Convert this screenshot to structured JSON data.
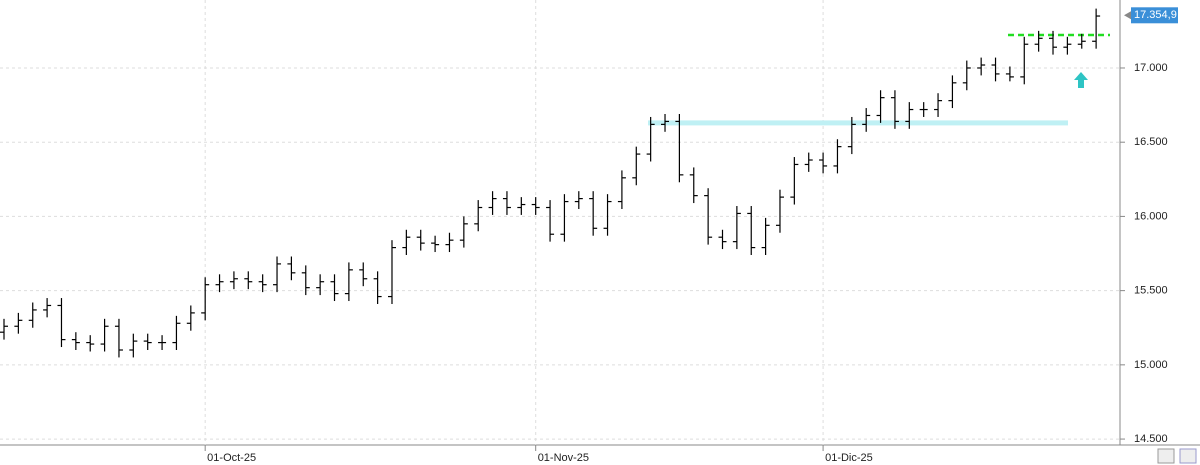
{
  "chart_data": {
    "type": "ohlc",
    "color": "#000000",
    "grid": true,
    "categories": [
      null,
      null,
      null,
      null,
      null,
      null,
      null,
      null,
      null,
      null,
      null,
      null,
      null,
      null,
      "01-Oct-25",
      null,
      null,
      null,
      null,
      null,
      null,
      null,
      null,
      null,
      null,
      null,
      null,
      null,
      null,
      null,
      null,
      null,
      null,
      null,
      null,
      null,
      null,
      "01-Nov-25",
      null,
      null,
      null,
      null,
      null,
      null,
      null,
      null,
      null,
      null,
      null,
      null,
      null,
      null,
      null,
      null,
      null,
      null,
      null,
      "01-Dic-25",
      null,
      null,
      null,
      null,
      null,
      null,
      null,
      null,
      null,
      null,
      null,
      null,
      null,
      null,
      null,
      null,
      null,
      null,
      null
    ],
    "open": [
      15220,
      15260,
      15300,
      15370,
      15400,
      15170,
      15150,
      15140,
      15260,
      15100,
      15160,
      15150,
      15150,
      15280,
      15350,
      15540,
      15560,
      15580,
      15560,
      15540,
      15680,
      15620,
      15520,
      15560,
      15480,
      15640,
      15580,
      15460,
      15790,
      15860,
      15820,
      15810,
      15840,
      15950,
      16060,
      16120,
      16060,
      16080,
      16060,
      15880,
      16100,
      16120,
      15920,
      16100,
      16260,
      16420,
      16620,
      16640,
      16280,
      16140,
      15860,
      15830,
      16020,
      15790,
      15940,
      16130,
      16350,
      16380,
      16340,
      16470,
      16620,
      16680,
      16800,
      16640,
      16720,
      16720,
      16780,
      16900,
      17000,
      17020,
      16960,
      16940,
      17160,
      17200,
      17140,
      17160,
      17180
    ],
    "high": [
      15310,
      15350,
      15420,
      15450,
      15450,
      15220,
      15200,
      15310,
      15310,
      15210,
      15210,
      15200,
      15330,
      15400,
      15590,
      15610,
      15630,
      15630,
      15610,
      15730,
      15730,
      15670,
      15610,
      15610,
      15690,
      15690,
      15630,
      15840,
      15910,
      15910,
      15870,
      15890,
      16000,
      16110,
      16170,
      16170,
      16130,
      16130,
      16110,
      16150,
      16170,
      16170,
      16150,
      16310,
      16470,
      16670,
      16690,
      16690,
      16330,
      16190,
      15910,
      16070,
      16070,
      15990,
      16180,
      16400,
      16430,
      16430,
      16520,
      16670,
      16730,
      16850,
      16850,
      16770,
      16770,
      16830,
      16950,
      17050,
      17070,
      17070,
      17010,
      17210,
      17250,
      17250,
      17210,
      17230,
      17400
    ],
    "low": [
      15170,
      15210,
      15250,
      15320,
      15120,
      15100,
      15090,
      15090,
      15050,
      15050,
      15100,
      15100,
      15100,
      15230,
      15300,
      15490,
      15510,
      15510,
      15490,
      15490,
      15570,
      15470,
      15470,
      15430,
      15430,
      15530,
      15410,
      15410,
      15740,
      15770,
      15760,
      15760,
      15790,
      15900,
      16010,
      16010,
      16010,
      16010,
      15830,
      15830,
      16050,
      15870,
      15870,
      16050,
      16210,
      16370,
      16570,
      16230,
      16090,
      15810,
      15780,
      15780,
      15740,
      15740,
      15890,
      16080,
      16300,
      16290,
      16290,
      16420,
      16570,
      16630,
      16590,
      16590,
      16670,
      16670,
      16730,
      16850,
      16950,
      16910,
      16910,
      16890,
      17110,
      17090,
      17090,
      17130,
      17130
    ],
    "close": [
      15260,
      15300,
      15370,
      15400,
      15170,
      15150,
      15140,
      15260,
      15100,
      15160,
      15150,
      15150,
      15280,
      15350,
      15540,
      15560,
      15580,
      15560,
      15540,
      15680,
      15620,
      15520,
      15560,
      15480,
      15640,
      15580,
      15460,
      15790,
      15860,
      15820,
      15810,
      15840,
      15950,
      16060,
      16120,
      16060,
      16080,
      16060,
      15880,
      16100,
      16120,
      15920,
      16100,
      16260,
      16420,
      16620,
      16640,
      16280,
      16140,
      15860,
      15830,
      16020,
      15790,
      15940,
      16130,
      16350,
      16380,
      16340,
      16470,
      16620,
      16680,
      16800,
      16640,
      16720,
      16720,
      16780,
      16900,
      17000,
      17020,
      16960,
      16940,
      17160,
      17200,
      17140,
      17160,
      17180,
      17350
    ],
    "ylim": [
      14460,
      17458
    ],
    "yticks": [
      {
        "value": 14500,
        "label": "14.500"
      },
      {
        "value": 15000,
        "label": "15.000"
      },
      {
        "value": 15500,
        "label": "15.500"
      },
      {
        "value": 16000,
        "label": "16.000"
      },
      {
        "value": 16500,
        "label": "16.500"
      },
      {
        "value": 17000,
        "label": "17.000"
      }
    ],
    "last_price": {
      "value": 17354.9,
      "label": "17.354,9"
    }
  }
}
